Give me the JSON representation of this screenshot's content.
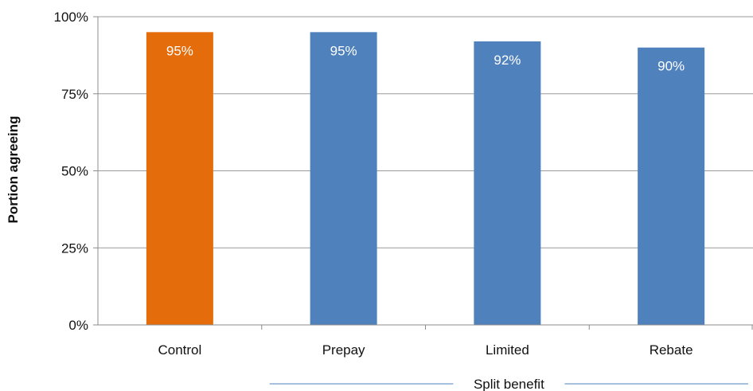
{
  "chart_data": {
    "type": "bar",
    "categories": [
      "Control",
      "Prepay",
      "Limited",
      "Rebate"
    ],
    "values": [
      95,
      95,
      92,
      90
    ],
    "data_labels": [
      "95%",
      "95%",
      "92%",
      "90%"
    ],
    "colors": [
      "#E46C0A",
      "#4F81BD",
      "#4F81BD",
      "#4F81BD"
    ],
    "ylabel": "Portion agreeing",
    "ylim": [
      0,
      100
    ],
    "yticks": [
      0,
      25,
      50,
      75,
      100
    ],
    "ytick_labels": [
      "0%",
      "25%",
      "50%",
      "75%",
      "100%"
    ],
    "grid": true,
    "category_group": {
      "label": "Split benefit",
      "categories": [
        "Prepay",
        "Limited",
        "Rebate"
      ],
      "line_color": "#4F81BD"
    }
  }
}
